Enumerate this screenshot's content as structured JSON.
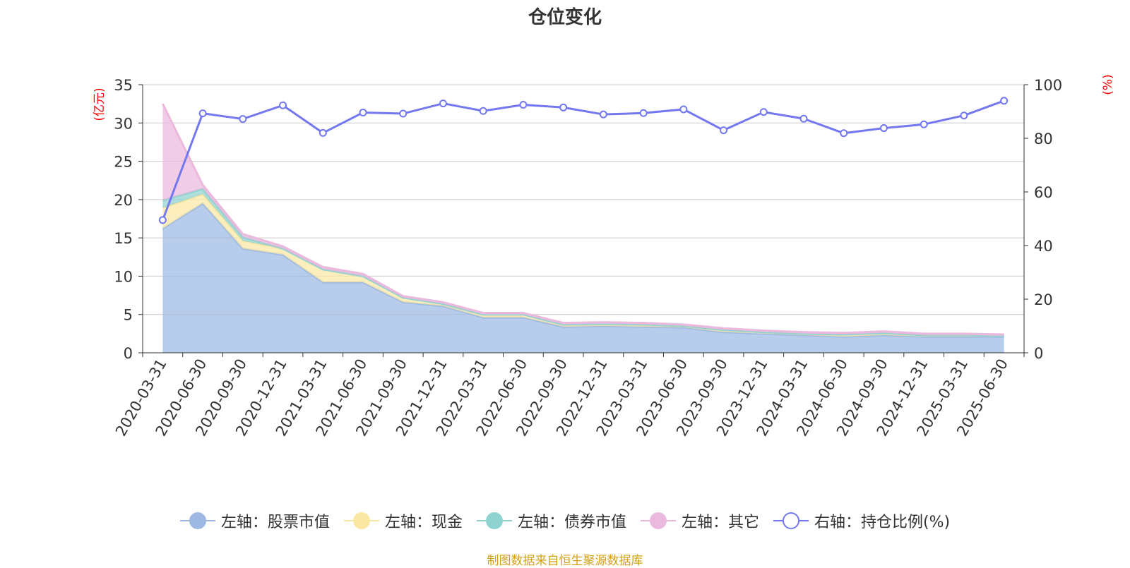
{
  "title": "仓位变化",
  "source_note": "制图数据来自恒生聚源数据库",
  "colors": {
    "stock": "#9db9e3",
    "cash": "#fbe7a4",
    "bond": "#8fd3d1",
    "other": "#eab9dd",
    "ratio": "#7377f0",
    "axis_unit": "#ff0000",
    "grid": "#cccccc",
    "axis": "#333333"
  },
  "legend": [
    {
      "label": "左轴：股票市值",
      "key": "stock",
      "marker": "filled-circle"
    },
    {
      "label": "左轴：现金",
      "key": "cash",
      "marker": "filled-circle"
    },
    {
      "label": "左轴：债券市值",
      "key": "bond",
      "marker": "filled-circle"
    },
    {
      "label": "左轴：其它",
      "key": "other",
      "marker": "filled-circle"
    },
    {
      "label": "右轴：持仓比例(%)",
      "key": "ratio",
      "marker": "hollow-circle"
    }
  ],
  "chart_data": {
    "type": "area",
    "title": "仓位变化",
    "y_left_label": "(亿元)",
    "y_right_label": "(%)",
    "y_left_lim": [
      0,
      35
    ],
    "y_left_ticks": [
      0,
      5,
      10,
      15,
      20,
      25,
      30,
      35
    ],
    "y_right_lim": [
      0,
      100
    ],
    "y_right_ticks": [
      0,
      20,
      40,
      60,
      80,
      100
    ],
    "grid": true,
    "legend_position": "bottom",
    "stacked": true,
    "categories": [
      "2020-03-31",
      "2020-06-30",
      "2020-09-30",
      "2020-12-31",
      "2021-03-31",
      "2021-06-30",
      "2021-09-30",
      "2021-12-31",
      "2022-03-31",
      "2022-06-30",
      "2022-09-30",
      "2022-12-31",
      "2023-03-31",
      "2023-06-30",
      "2023-09-30",
      "2023-12-31",
      "2024-03-31",
      "2024-06-30",
      "2024-09-30",
      "2024-12-31",
      "2025-03-31",
      "2025-06-30"
    ],
    "series": [
      {
        "name": "左轴：股票市值",
        "key": "stock",
        "axis": "left",
        "values": [
          16.2,
          19.5,
          13.6,
          12.8,
          9.2,
          9.2,
          6.6,
          6.1,
          4.6,
          4.6,
          3.4,
          3.5,
          3.4,
          3.3,
          2.7,
          2.5,
          2.3,
          2.1,
          2.3,
          2.1,
          2.1,
          2.1
        ]
      },
      {
        "name": "左轴：现金",
        "key": "cash",
        "axis": "left",
        "values": [
          2.7,
          1.2,
          1.0,
          0.8,
          1.7,
          0.8,
          0.6,
          0.3,
          0.4,
          0.4,
          0.3,
          0.3,
          0.3,
          0.2,
          0.3,
          0.2,
          0.2,
          0.3,
          0.3,
          0.2,
          0.2,
          0.1
        ]
      },
      {
        "name": "左轴：债券市值",
        "key": "bond",
        "axis": "left",
        "values": [
          1.0,
          0.7,
          0.5,
          0.0,
          0.0,
          0.0,
          0.0,
          0.0,
          0.0,
          0.0,
          0.0,
          0.0,
          0.0,
          0.0,
          0.0,
          0.0,
          0.0,
          0.0,
          0.0,
          0.0,
          0.0,
          0.0
        ]
      },
      {
        "name": "左轴：其它",
        "key": "other",
        "axis": "left",
        "values": [
          12.6,
          0.5,
          0.4,
          0.3,
          0.3,
          0.3,
          0.2,
          0.2,
          0.2,
          0.2,
          0.2,
          0.2,
          0.2,
          0.2,
          0.2,
          0.2,
          0.2,
          0.2,
          0.2,
          0.2,
          0.2,
          0.2
        ]
      },
      {
        "name": "右轴：持仓比例(%)",
        "key": "ratio",
        "axis": "right",
        "type": "line",
        "values": [
          49.5,
          89.3,
          87.2,
          92.3,
          82.0,
          89.6,
          89.2,
          93.0,
          90.2,
          92.5,
          91.5,
          88.9,
          89.4,
          90.8,
          83.0,
          89.8,
          87.3,
          81.9,
          83.8,
          85.2,
          88.5,
          94.0
        ]
      }
    ]
  }
}
